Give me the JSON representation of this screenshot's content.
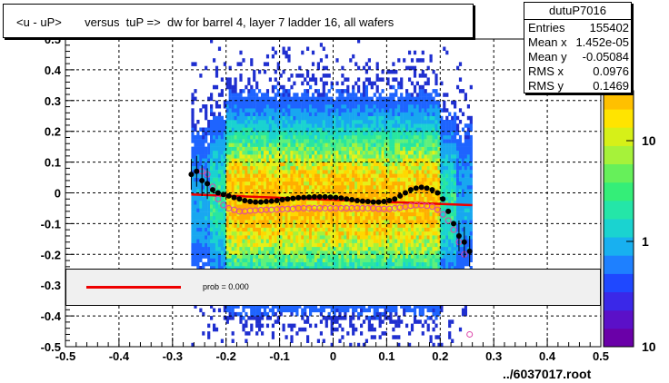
{
  "title": "<u - uP>       versus  tuP =>  dw for barrel 4, layer 7 ladder 16, all wafers",
  "stats": {
    "name": "dutuP7016",
    "rows": [
      {
        "label": "Entries",
        "value": "155402"
      },
      {
        "label": "Mean x",
        "value": "1.452e-05"
      },
      {
        "label": "Mean y",
        "value": "-0.05084"
      },
      {
        "label": "RMS x",
        "value": "0.0976"
      },
      {
        "label": "RMS y",
        "value": "0.1469"
      }
    ]
  },
  "legend": {
    "label": "prob = 0.000"
  },
  "footer": "../6037017.root",
  "colors": {
    "fit_line": "#ee0000",
    "profile_markers": "#000000",
    "open_markers": "#dd44aa",
    "legend_bg": "#f0f0f0"
  },
  "chart_data": {
    "type": "heatmap",
    "x_axis": {
      "range": [
        -0.5,
        0.5
      ],
      "ticks": [
        "-0.5",
        "-0.4",
        "-0.3",
        "-0.2",
        "-0.1",
        "0",
        "0.1",
        "0.2",
        "0.3",
        "0.4",
        "0.5"
      ]
    },
    "y_axis": {
      "range": [
        -0.5,
        0.5
      ],
      "ticks": [
        "-0.5",
        "-0.4",
        "-0.3",
        "-0.2",
        "-0.1",
        "0",
        "0.1",
        "0.2",
        "0.3",
        "0.4",
        "0.5"
      ]
    },
    "z_axis": {
      "scale": "log",
      "ticks": [
        "1",
        "10"
      ],
      "bottom_label": "10"
    },
    "grid": true,
    "profile_filled": {
      "x": [
        -0.265,
        -0.255,
        -0.245,
        -0.235,
        -0.225,
        -0.215,
        -0.205,
        -0.195,
        -0.185,
        -0.175,
        -0.165,
        -0.155,
        -0.145,
        -0.135,
        -0.125,
        -0.115,
        -0.105,
        -0.095,
        -0.085,
        -0.075,
        -0.065,
        -0.055,
        -0.045,
        -0.035,
        -0.025,
        -0.015,
        -0.005,
        0.005,
        0.015,
        0.025,
        0.035,
        0.045,
        0.055,
        0.065,
        0.075,
        0.085,
        0.095,
        0.105,
        0.115,
        0.125,
        0.135,
        0.145,
        0.155,
        0.165,
        0.175,
        0.185,
        0.195,
        0.205,
        0.215,
        0.225,
        0.235,
        0.245,
        0.255
      ],
      "y": [
        0.06,
        0.07,
        0.04,
        0.03,
        0.01,
        0.0,
        -0.005,
        -0.01,
        -0.015,
        -0.02,
        -0.025,
        -0.028,
        -0.03,
        -0.03,
        -0.028,
        -0.027,
        -0.025,
        -0.022,
        -0.02,
        -0.018,
        -0.016,
        -0.015,
        -0.014,
        -0.013,
        -0.013,
        -0.013,
        -0.014,
        -0.015,
        -0.017,
        -0.02,
        -0.022,
        -0.025,
        -0.027,
        -0.028,
        -0.03,
        -0.03,
        -0.028,
        -0.025,
        -0.02,
        -0.01,
        0.0,
        0.01,
        0.015,
        0.018,
        0.015,
        0.01,
        0.0,
        -0.02,
        -0.06,
        -0.1,
        -0.14,
        -0.16,
        -0.19
      ]
    },
    "profile_open": {
      "x": [
        -0.245,
        -0.235,
        -0.225,
        -0.215,
        -0.205,
        -0.195,
        -0.185,
        -0.175,
        -0.165,
        -0.155,
        -0.145,
        -0.135,
        -0.125,
        -0.115,
        -0.105,
        -0.095,
        -0.085,
        -0.075,
        -0.065,
        -0.055,
        -0.045,
        -0.035,
        -0.025,
        -0.015,
        -0.005,
        0.005,
        0.015,
        0.025,
        0.035,
        0.045,
        0.055,
        0.065,
        0.075,
        0.085,
        0.095,
        0.105,
        0.115,
        0.125,
        0.135,
        0.145,
        0.155,
        0.165,
        0.175,
        0.185,
        0.195,
        0.205,
        0.215,
        0.225,
        0.235,
        0.245,
        0.255
      ],
      "y": [
        0.07,
        0.06,
        0.02,
        -0.02,
        -0.04,
        -0.05,
        -0.055,
        -0.06,
        -0.06,
        -0.058,
        -0.057,
        -0.056,
        -0.055,
        -0.055,
        -0.054,
        -0.053,
        -0.052,
        -0.052,
        -0.05,
        -0.05,
        -0.05,
        -0.05,
        -0.05,
        -0.05,
        -0.05,
        -0.05,
        -0.05,
        -0.05,
        -0.05,
        -0.05,
        -0.05,
        -0.05,
        -0.05,
        -0.052,
        -0.052,
        -0.052,
        -0.05,
        -0.048,
        -0.045,
        -0.042,
        -0.04,
        -0.04,
        -0.042,
        -0.045,
        -0.055,
        -0.07,
        -0.09,
        -0.12,
        -0.16,
        -0.2,
        -0.46
      ]
    },
    "fit_line": {
      "x": [
        -0.265,
        0.26
      ],
      "y": [
        -0.005,
        -0.04
      ]
    }
  }
}
